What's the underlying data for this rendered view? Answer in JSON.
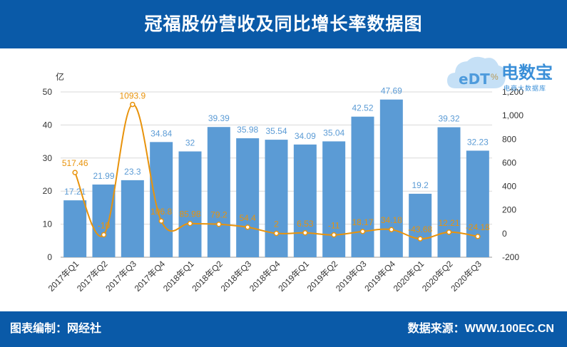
{
  "header": {
    "title": "冠福股份营收及同比增长率数据图"
  },
  "footer": {
    "left": "图表编制：网经社",
    "right": "数据来源：WWW.100EC.CN"
  },
  "logo": {
    "name": "电数宝",
    "sub": "电商大数据库",
    "icon_text": "eDT"
  },
  "chart_data": {
    "type": "bar+line",
    "categories": [
      "2017年Q1",
      "2017年Q2",
      "2017年Q3",
      "2017年Q4",
      "2018年Q1",
      "2018年Q2",
      "2018年Q3",
      "2018年Q4",
      "2019年Q1",
      "2019年Q2",
      "2019年Q3",
      "2019年Q4",
      "2020年Q1",
      "2020年Q2",
      "2020年Q3"
    ],
    "bar_series": {
      "values": [
        17.21,
        21.99,
        23.3,
        34.84,
        32,
        39.39,
        35.98,
        35.54,
        34.09,
        35.04,
        42.52,
        47.69,
        19.2,
        39.32,
        32.23
      ],
      "labels": [
        "17.21",
        "21.99",
        "23.3",
        "34.84",
        "32",
        "39.39",
        "35.98",
        "35.54",
        "34.09",
        "35.04",
        "42.52",
        "47.69",
        "19.2",
        "39.32",
        "32.23"
      ],
      "color": "#5b9bd5"
    },
    "line_series": {
      "values": [
        517.46,
        -10,
        1093.9,
        106.8,
        85.98,
        79.2,
        54.4,
        2,
        6.53,
        -11,
        18.17,
        34.18,
        -43.68,
        12.21,
        -24.18
      ],
      "labels": [
        "517.46",
        "-10",
        "1093.9",
        "106.8",
        "85.98",
        "79.2",
        "54.4",
        "2",
        "6.53",
        "-11",
        "18.17",
        "34.18",
        "-43.68",
        "12.21",
        "-24.18"
      ],
      "color": "#e8930c"
    },
    "y_left": {
      "unit": "亿",
      "min": 0,
      "max": 50,
      "ticks": [
        "0",
        "10",
        "20",
        "30",
        "40",
        "50"
      ]
    },
    "y_right": {
      "unit": "%",
      "min": -200,
      "max": 1200,
      "ticks": [
        "-200",
        "0",
        "200",
        "400",
        "600",
        "800",
        "1,000",
        "1,200"
      ]
    },
    "grid": true
  }
}
